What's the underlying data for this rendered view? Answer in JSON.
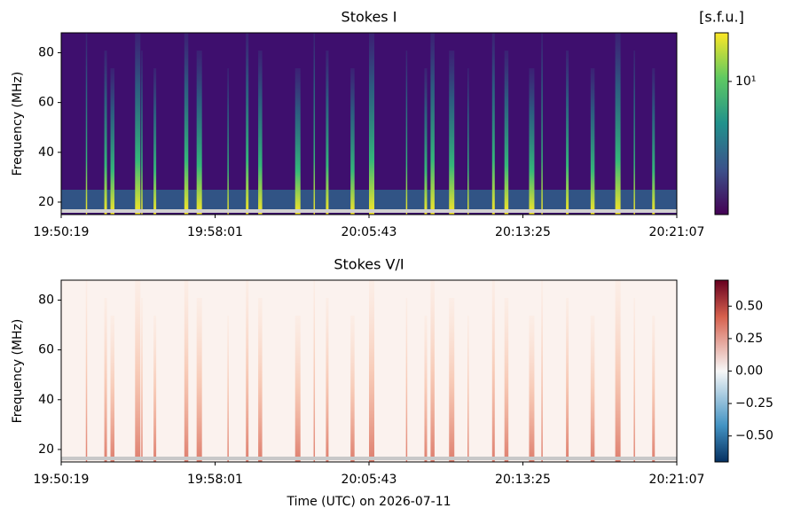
{
  "chart_data": [
    {
      "type": "spectrogram",
      "title": "Stokes I",
      "ylabel": "Frequency (MHz)",
      "ylim": [
        15,
        88
      ],
      "yticks": [
        20,
        40,
        60,
        80
      ],
      "xticks": [
        "19:50:19",
        "19:58:01",
        "20:05:43",
        "20:13:25",
        "20:21:07"
      ],
      "cmap": "viridis",
      "cscale": "log",
      "clim": [
        1.5,
        20
      ],
      "cticks": [
        {
          "value": 10,
          "label": "10¹"
        }
      ],
      "colorbar_label": "[s.f.u.]"
    },
    {
      "type": "spectrogram",
      "title": "Stokes V/I",
      "ylabel": "Frequency (MHz)",
      "ylim": [
        15,
        88
      ],
      "yticks": [
        20,
        40,
        60,
        80
      ],
      "xticks": [
        "19:50:19",
        "19:58:01",
        "20:05:43",
        "20:13:25",
        "20:21:07"
      ],
      "xlabel": "Time (UTC) on 2026-07-11",
      "cmap": "RdBu_r",
      "cscale": "linear",
      "clim": [
        -0.7,
        0.7
      ],
      "cticks": [
        {
          "value": 0.5,
          "label": "0.50"
        },
        {
          "value": 0.25,
          "label": "0.25"
        },
        {
          "value": 0,
          "label": "0.00"
        },
        {
          "value": -0.25,
          "label": "−0.25"
        },
        {
          "value": -0.5,
          "label": "−0.50"
        }
      ]
    }
  ]
}
